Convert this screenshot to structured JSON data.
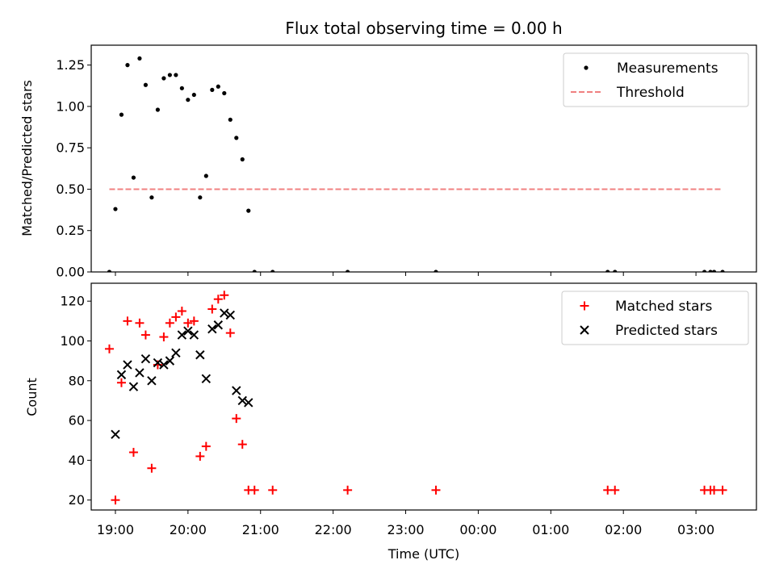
{
  "chart_data": [
    {
      "type": "scatter",
      "title": "Flux total observing time = 0.00 h",
      "xlabel": "",
      "ylabel": "Matched/Predicted stars",
      "ylim": [
        0,
        1.37
      ],
      "xlim": [
        "18:40",
        "03:50"
      ],
      "yticks": [
        "0.00",
        "0.25",
        "0.50",
        "0.75",
        "1.00",
        "1.25"
      ],
      "legend_position": "top-right",
      "series": [
        {
          "name": "Measurements",
          "marker": "dot",
          "color": "#000000",
          "points": [
            [
              "18:55",
              0.0
            ],
            [
              "19:00",
              0.38
            ],
            [
              "19:05",
              0.95
            ],
            [
              "19:10",
              1.25
            ],
            [
              "19:15",
              0.57
            ],
            [
              "19:20",
              1.29
            ],
            [
              "19:25",
              1.13
            ],
            [
              "19:30",
              0.45
            ],
            [
              "19:35",
              0.98
            ],
            [
              "19:40",
              1.17
            ],
            [
              "19:45",
              1.19
            ],
            [
              "19:50",
              1.19
            ],
            [
              "19:55",
              1.11
            ],
            [
              "20:00",
              1.04
            ],
            [
              "20:05",
              1.07
            ],
            [
              "20:10",
              0.45
            ],
            [
              "20:15",
              0.58
            ],
            [
              "20:20",
              1.1
            ],
            [
              "20:25",
              1.12
            ],
            [
              "20:30",
              1.08
            ],
            [
              "20:35",
              0.92
            ],
            [
              "20:40",
              0.81
            ],
            [
              "20:45",
              0.68
            ],
            [
              "20:50",
              0.37
            ],
            [
              "20:55",
              0.0
            ],
            [
              "21:10",
              0.0
            ],
            [
              "22:12",
              0.0
            ],
            [
              "23:25",
              0.0
            ],
            [
              "01:47",
              0.0
            ],
            [
              "01:53",
              0.0
            ],
            [
              "03:07",
              0.0
            ],
            [
              "03:12",
              0.0
            ],
            [
              "03:15",
              0.0
            ],
            [
              "03:22",
              0.0
            ]
          ]
        },
        {
          "name": "Threshold",
          "marker": "dashed-line",
          "color": "#f08080",
          "points": [
            [
              "18:55",
              0.5
            ],
            [
              "03:22",
              0.5
            ]
          ]
        }
      ]
    },
    {
      "type": "scatter",
      "title": "",
      "xlabel": "Time (UTC)",
      "ylabel": "Count",
      "ylim": [
        15,
        129
      ],
      "xlim": [
        "18:40",
        "03:50"
      ],
      "xticks": [
        "19:00",
        "20:00",
        "21:00",
        "22:00",
        "23:00",
        "00:00",
        "01:00",
        "02:00",
        "03:00"
      ],
      "yticks": [
        "20",
        "40",
        "60",
        "80",
        "100",
        "120"
      ],
      "legend_position": "top-right",
      "series": [
        {
          "name": "Matched stars",
          "marker": "plus",
          "color": "#ff0000",
          "points": [
            [
              "18:55",
              96
            ],
            [
              "19:00",
              20
            ],
            [
              "19:05",
              79
            ],
            [
              "19:10",
              110
            ],
            [
              "19:15",
              44
            ],
            [
              "19:20",
              109
            ],
            [
              "19:25",
              103
            ],
            [
              "19:30",
              36
            ],
            [
              "19:35",
              88
            ],
            [
              "19:40",
              102
            ],
            [
              "19:45",
              109
            ],
            [
              "19:50",
              112
            ],
            [
              "19:55",
              115
            ],
            [
              "20:00",
              109
            ],
            [
              "20:05",
              110
            ],
            [
              "20:10",
              42
            ],
            [
              "20:15",
              47
            ],
            [
              "20:20",
              116
            ],
            [
              "20:25",
              121
            ],
            [
              "20:30",
              123
            ],
            [
              "20:35",
              104
            ],
            [
              "20:40",
              61
            ],
            [
              "20:45",
              48
            ],
            [
              "20:50",
              25
            ],
            [
              "20:55",
              25
            ],
            [
              "21:10",
              25
            ],
            [
              "22:12",
              25
            ],
            [
              "23:25",
              25
            ],
            [
              "01:47",
              25
            ],
            [
              "01:53",
              25
            ],
            [
              "03:07",
              25
            ],
            [
              "03:12",
              25
            ],
            [
              "03:15",
              25
            ],
            [
              "03:22",
              25
            ]
          ]
        },
        {
          "name": "Predicted stars",
          "marker": "x",
          "color": "#000000",
          "points": [
            [
              "19:00",
              53
            ],
            [
              "19:05",
              83
            ],
            [
              "19:10",
              88
            ],
            [
              "19:15",
              77
            ],
            [
              "19:20",
              84
            ],
            [
              "19:25",
              91
            ],
            [
              "19:30",
              80
            ],
            [
              "19:35",
              89
            ],
            [
              "19:40",
              88
            ],
            [
              "19:45",
              90
            ],
            [
              "19:50",
              94
            ],
            [
              "19:55",
              103
            ],
            [
              "20:00",
              105
            ],
            [
              "20:05",
              103
            ],
            [
              "20:10",
              93
            ],
            [
              "20:15",
              81
            ],
            [
              "20:20",
              106
            ],
            [
              "20:25",
              108
            ],
            [
              "20:30",
              114
            ],
            [
              "20:35",
              113
            ],
            [
              "20:40",
              75
            ],
            [
              "20:45",
              70
            ],
            [
              "20:50",
              69
            ]
          ]
        }
      ]
    }
  ]
}
